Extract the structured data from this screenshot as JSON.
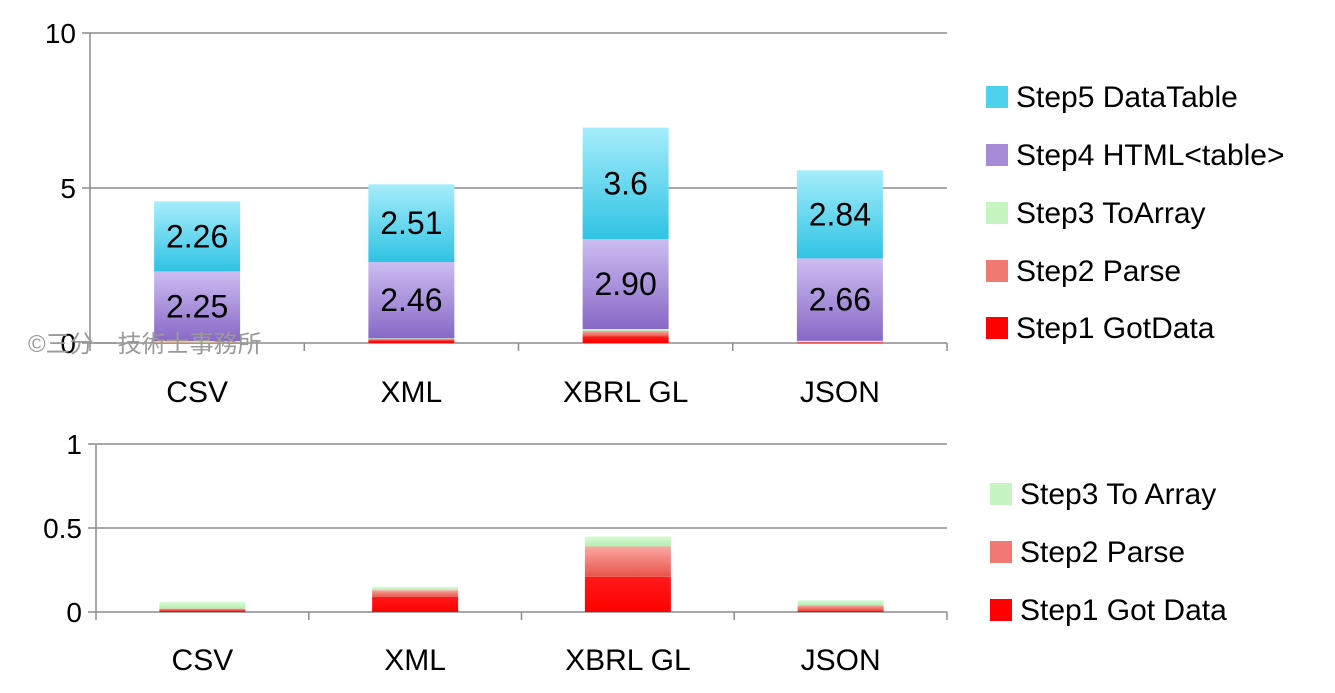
{
  "watermark": "©三分一技術士事務所",
  "colors": {
    "step1": "#ff0000",
    "step2": "#f07a72",
    "step3": "#c6f5c2",
    "step4": "#a58ad8",
    "step5": "#4fd2ee",
    "axis": "#8c8c8c"
  },
  "chart_data": [
    {
      "type": "bar",
      "stacked": true,
      "categories": [
        "CSV",
        "XML",
        "XBRL GL",
        "JSON"
      ],
      "ylim": [
        0,
        10
      ],
      "yticks": [
        "0",
        "5",
        "10"
      ],
      "grid": true,
      "legend_position": "right",
      "series": [
        {
          "name": "Step1 GotData",
          "values": [
            0.01,
            0.09,
            0.21,
            0.01
          ]
        },
        {
          "name": "Step2 Parse",
          "values": [
            0.01,
            0.04,
            0.18,
            0.03
          ]
        },
        {
          "name": "Step3 ToArray",
          "values": [
            0.04,
            0.02,
            0.06,
            0.03
          ]
        },
        {
          "name": "Step4 HTML<table>",
          "values": [
            2.25,
            2.46,
            2.9,
            2.66
          ],
          "labels": [
            "2.25",
            "2.46",
            "2.90",
            "2.66"
          ]
        },
        {
          "name": "Step5 DataTable",
          "values": [
            2.26,
            2.51,
            3.6,
            2.84
          ],
          "labels": [
            "2.26",
            "2.51",
            "3.6",
            "2.84"
          ]
        }
      ]
    },
    {
      "type": "bar",
      "stacked": true,
      "categories": [
        "CSV",
        "XML",
        "XBRL GL",
        "JSON"
      ],
      "ylim": [
        0,
        1
      ],
      "yticks": [
        "0",
        "0.5",
        "1"
      ],
      "grid": true,
      "legend_position": "right",
      "series": [
        {
          "name": "Step1 Got Data",
          "values": [
            0.01,
            0.09,
            0.21,
            0.01
          ]
        },
        {
          "name": "Step2 Parse",
          "values": [
            0.01,
            0.04,
            0.18,
            0.03
          ]
        },
        {
          "name": "Step3 To Array",
          "values": [
            0.04,
            0.02,
            0.06,
            0.03
          ]
        }
      ]
    }
  ]
}
